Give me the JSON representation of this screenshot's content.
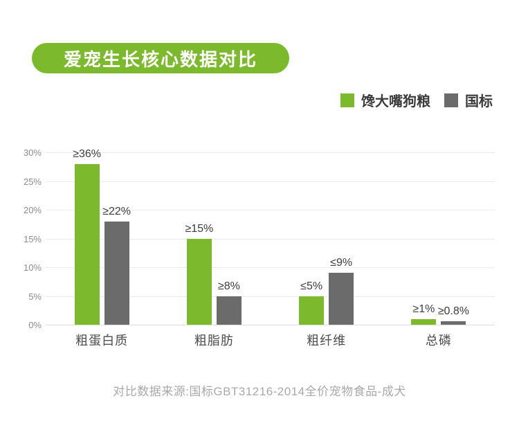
{
  "title": {
    "text": "爱宠生长核心数据对比"
  },
  "legend": [
    {
      "label": "馋大嘴狗粮",
      "color": "#7cb92c"
    },
    {
      "label": "国标",
      "color": "#6b6b6b"
    }
  ],
  "chart_data": {
    "type": "bar",
    "title": "爱宠生长核心数据对比",
    "categories": [
      "粗蛋白质",
      "粗脂肪",
      "粗纤维",
      "总磷"
    ],
    "series": [
      {
        "name": "馋大嘴狗粮",
        "color": "#7cb92c",
        "value_labels": [
          "≥36%",
          "≥15%",
          "≤5%",
          "≥1%"
        ],
        "values": [
          36,
          15,
          5,
          1
        ],
        "drawn_heights_pct": [
          28,
          15,
          5,
          1
        ]
      },
      {
        "name": "国标",
        "color": "#6b6b6b",
        "value_labels": [
          "≥22%",
          "≥8%",
          "≤9%",
          "≥0.8%"
        ],
        "values": [
          22,
          8,
          9,
          0.8
        ],
        "drawn_heights_pct": [
          18,
          5,
          9,
          0.55
        ]
      }
    ],
    "xlabel": "",
    "ylabel": "",
    "ylim": [
      0,
      30
    ],
    "yticks": [
      "30%",
      "25%",
      "20%",
      "15%",
      "10%",
      "5%",
      "0%"
    ],
    "grid": true,
    "legend_position": "top-right"
  },
  "footer": {
    "source": "对比数据来源:国标GBT31216-2014全价宠物食品-成犬"
  }
}
